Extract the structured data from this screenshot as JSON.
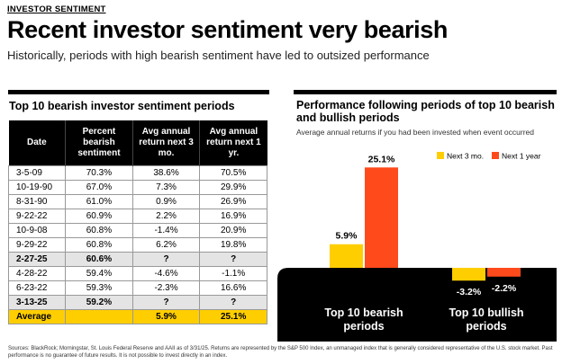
{
  "header": {
    "kicker": "INVESTOR SENTIMENT",
    "title": "Recent investor sentiment very bearish",
    "subtitle": "Historically, periods with high bearish sentiment have led to outsized performance"
  },
  "table": {
    "title": "Top 10 bearish investor sentiment periods",
    "headers": [
      "Date",
      "Percent bearish sentiment",
      "Avg annual return next 3 mo.",
      "Avg annual return next 1 yr."
    ],
    "rows": [
      {
        "date": "3-5-09",
        "pct": "70.3%",
        "r3": "38.6%",
        "r1": "70.5%",
        "hl": false
      },
      {
        "date": "10-19-90",
        "pct": "67.0%",
        "r3": "7.3%",
        "r1": "29.9%",
        "hl": false
      },
      {
        "date": "8-31-90",
        "pct": "61.0%",
        "r3": "0.9%",
        "r1": "26.9%",
        "hl": false
      },
      {
        "date": "9-22-22",
        "pct": "60.9%",
        "r3": "2.2%",
        "r1": "16.9%",
        "hl": false
      },
      {
        "date": "10-9-08",
        "pct": "60.8%",
        "r3": "-1.4%",
        "r1": "20.9%",
        "hl": false
      },
      {
        "date": "9-29-22",
        "pct": "60.8%",
        "r3": "6.2%",
        "r1": "19.8%",
        "hl": false
      },
      {
        "date": "2-27-25",
        "pct": "60.6%",
        "r3": "?",
        "r1": "?",
        "hl": true
      },
      {
        "date": "4-28-22",
        "pct": "59.4%",
        "r3": "-4.6%",
        "r1": "-1.1%",
        "hl": false
      },
      {
        "date": "6-23-22",
        "pct": "59.3%",
        "r3": "-2.3%",
        "r1": "16.6%",
        "hl": false
      },
      {
        "date": "3-13-25",
        "pct": "59.2%",
        "r3": "?",
        "r1": "?",
        "hl": true
      }
    ],
    "average": {
      "label": "Average",
      "pct": "",
      "r3": "5.9%",
      "r1": "25.1%"
    }
  },
  "chart_data": {
    "type": "bar",
    "title": "Performance following periods of top 10 bearish and bullish periods",
    "subtitle": "Average annual returns if you had been invested when event occurred",
    "categories": [
      "Top 10 bearish periods",
      "Top 10 bullish periods"
    ],
    "series": [
      {
        "name": "Next 3 mo.",
        "color": "#ffce00",
        "values": [
          5.9,
          -3.2
        ],
        "labels": [
          "5.9%",
          "-3.2%"
        ]
      },
      {
        "name": "Next 1 year",
        "color": "#ff4a1c",
        "values": [
          25.1,
          -2.2
        ],
        "labels": [
          "25.1%",
          "-2.2%"
        ]
      }
    ],
    "legend_position": "top-right",
    "grid": false
  },
  "footer": "Sources: BlackRock; Morningstar, St. Louis Federal Reserve and AAII as of 3/31/25. Returns are represented by the S&P 500 Index, an unmanaged index that is generally considered representative of the U.S. stock market. Past performance is no guarantee of future results. It is not possible to invest directly in an index."
}
